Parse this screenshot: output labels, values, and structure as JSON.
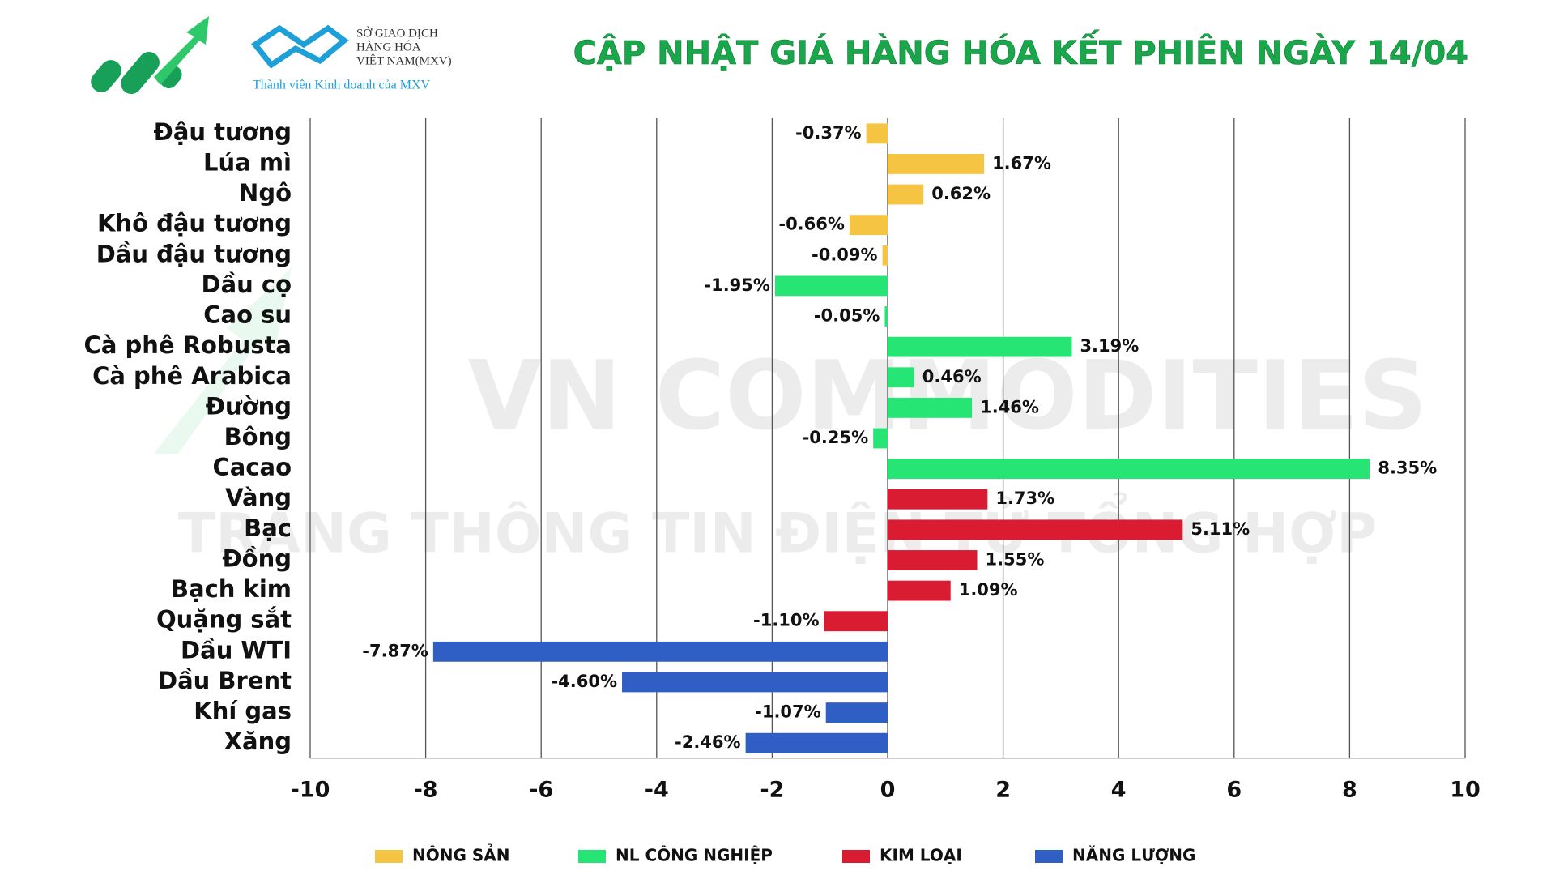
{
  "chart_data": {
    "type": "bar",
    "orientation": "horizontal",
    "title": "CẬP NHẬT GIÁ HÀNG HÓA KẾT PHIÊN NGÀY 14/04",
    "exchange_name": [
      "SỞ GIAO DỊCH",
      "HÀNG HÓA",
      "VIỆT NAM(MXV)"
    ],
    "exchange_subtitle": "Thành viên Kinh doanh của MXV",
    "watermark": [
      "VN COMMODITIES",
      "TRANG THÔNG TIN ĐIỆN TỬ TỔNG HỢP"
    ],
    "categories": [
      "Đậu tương",
      "Lúa mì",
      "Ngô",
      "Khô đậu tương",
      "Dầu đậu tương",
      "Dầu cọ",
      "Cao su",
      "Cà phê Robusta",
      "Cà phê Arabica",
      "Đường",
      "Bông",
      "Cacao",
      "Vàng",
      "Bạc",
      "Đồng",
      "Bạch kim",
      "Quặng sắt",
      "Dầu WTI",
      "Dầu Brent",
      "Khí gas",
      "Xăng"
    ],
    "series": [
      {
        "name": "NÔNG SẢN",
        "color": "#f6c443",
        "values": [
          -0.37,
          1.67,
          0.62,
          -0.66,
          -0.09,
          null,
          null,
          null,
          null,
          null,
          null,
          null,
          null,
          null,
          null,
          null,
          null,
          null,
          null,
          null,
          null
        ],
        "value_labels": [
          "-0.37%",
          "1.67%",
          "0.62%",
          "-0.66%",
          "-0.09%",
          null,
          null,
          null,
          null,
          null,
          null,
          null,
          null,
          null,
          null,
          null,
          null,
          null,
          null,
          null,
          null
        ]
      },
      {
        "name": "NL CÔNG NGHIỆP",
        "color": "#27e574",
        "values": [
          null,
          null,
          null,
          null,
          null,
          -1.95,
          -0.05,
          3.19,
          0.46,
          1.46,
          -0.25,
          8.35,
          null,
          null,
          null,
          null,
          null,
          null,
          null,
          null,
          null
        ],
        "value_labels": [
          null,
          null,
          null,
          null,
          null,
          "-1.95%",
          "-0.05%",
          "3.19%",
          "0.46%",
          "1.46%",
          "-0.25%",
          "8.35%",
          null,
          null,
          null,
          null,
          null,
          null,
          null,
          null,
          null
        ]
      },
      {
        "name": "KIM LOẠI",
        "color": "#d91c32",
        "values": [
          null,
          null,
          null,
          null,
          null,
          null,
          null,
          null,
          null,
          null,
          null,
          null,
          1.73,
          5.11,
          1.55,
          1.09,
          -1.1,
          null,
          null,
          null,
          null
        ],
        "value_labels": [
          null,
          null,
          null,
          null,
          null,
          null,
          null,
          null,
          null,
          null,
          null,
          null,
          "1.73%",
          "5.11%",
          "1.55%",
          "1.09%",
          "-1.10%",
          null,
          null,
          null,
          null
        ]
      },
      {
        "name": "NĂNG LƯỢNG",
        "color": "#2f5ec4",
        "values": [
          null,
          null,
          null,
          null,
          null,
          null,
          null,
          null,
          null,
          null,
          null,
          null,
          null,
          null,
          null,
          null,
          null,
          -7.87,
          -4.6,
          -1.07,
          -2.46
        ],
        "value_labels": [
          null,
          null,
          null,
          null,
          null,
          null,
          null,
          null,
          null,
          null,
          null,
          null,
          null,
          null,
          null,
          null,
          null,
          "-7.87%",
          "-4.60%",
          "-1.07%",
          "-2.46%"
        ]
      }
    ],
    "xlim": [
      -10,
      10
    ],
    "xticks": [
      -10,
      -8,
      -6,
      -4,
      -2,
      0,
      2,
      4,
      6,
      8,
      10
    ],
    "grid": true
  }
}
